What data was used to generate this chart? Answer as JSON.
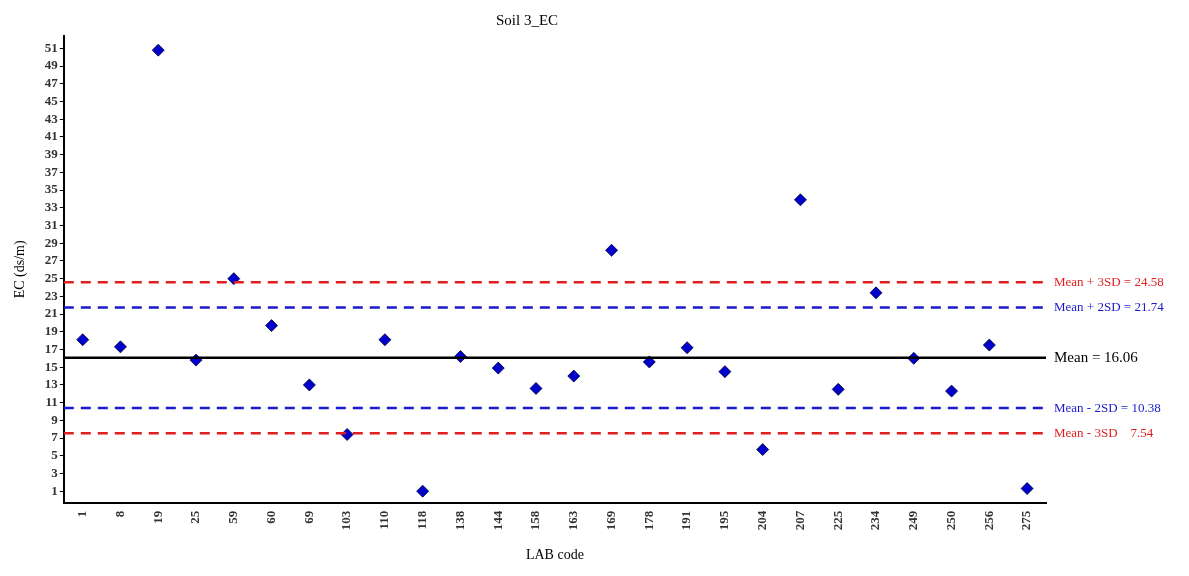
{
  "chart_data": {
    "type": "scatter",
    "title": "Soil 3_EC",
    "xlabel": "LAB code",
    "ylabel": "EC (ds/m)",
    "categories": [
      "1",
      "8",
      "19",
      "25",
      "59",
      "60",
      "69",
      "103",
      "110",
      "118",
      "138",
      "144",
      "158",
      "163",
      "169",
      "178",
      "191",
      "195",
      "204",
      "207",
      "225",
      "234",
      "249",
      "250",
      "256",
      "275"
    ],
    "series": [
      {
        "color": "#0000cc",
        "values": [
          18.1,
          17.3,
          50.8,
          15.8,
          25.0,
          19.7,
          13.0,
          7.4,
          18.1,
          1.0,
          16.2,
          14.9,
          12.6,
          14.0,
          28.2,
          15.6,
          17.2,
          14.5,
          5.7,
          33.9,
          12.5,
          23.4,
          16.0,
          12.3,
          17.5,
          1.3
        ]
      }
    ],
    "ylim": [
      -0.3,
      52.4
    ],
    "yticks": [
      1,
      3,
      5,
      7,
      9,
      11,
      13,
      15,
      17,
      19,
      21,
      23,
      25,
      27,
      29,
      31,
      33,
      35,
      37,
      39,
      41,
      43,
      45,
      47,
      49,
      51
    ],
    "marker": "diamond",
    "grid": false,
    "legend": false,
    "ref_lines": [
      {
        "axis": "y",
        "value": 24.58,
        "label": "Mean + 3SD = 24.58",
        "color": "#e02020",
        "line_style": "dashed"
      },
      {
        "axis": "y",
        "value": 21.74,
        "label": "Mean + 2SD = 21.74",
        "color": "#1a1acc",
        "line_style": "dashed"
      },
      {
        "axis": "y",
        "value": 16.06,
        "label": "Mean = 16.06",
        "color": "#000000",
        "line_style": "solid"
      },
      {
        "axis": "y",
        "value": 10.38,
        "label": "Mean - 2SD = 10.38",
        "color": "#1a1acc",
        "line_style": "dashed"
      },
      {
        "axis": "y",
        "value": 7.54,
        "label": "Mean - 3SD    7.54",
        "color": "#e02020",
        "line_style": "dashed"
      }
    ]
  }
}
